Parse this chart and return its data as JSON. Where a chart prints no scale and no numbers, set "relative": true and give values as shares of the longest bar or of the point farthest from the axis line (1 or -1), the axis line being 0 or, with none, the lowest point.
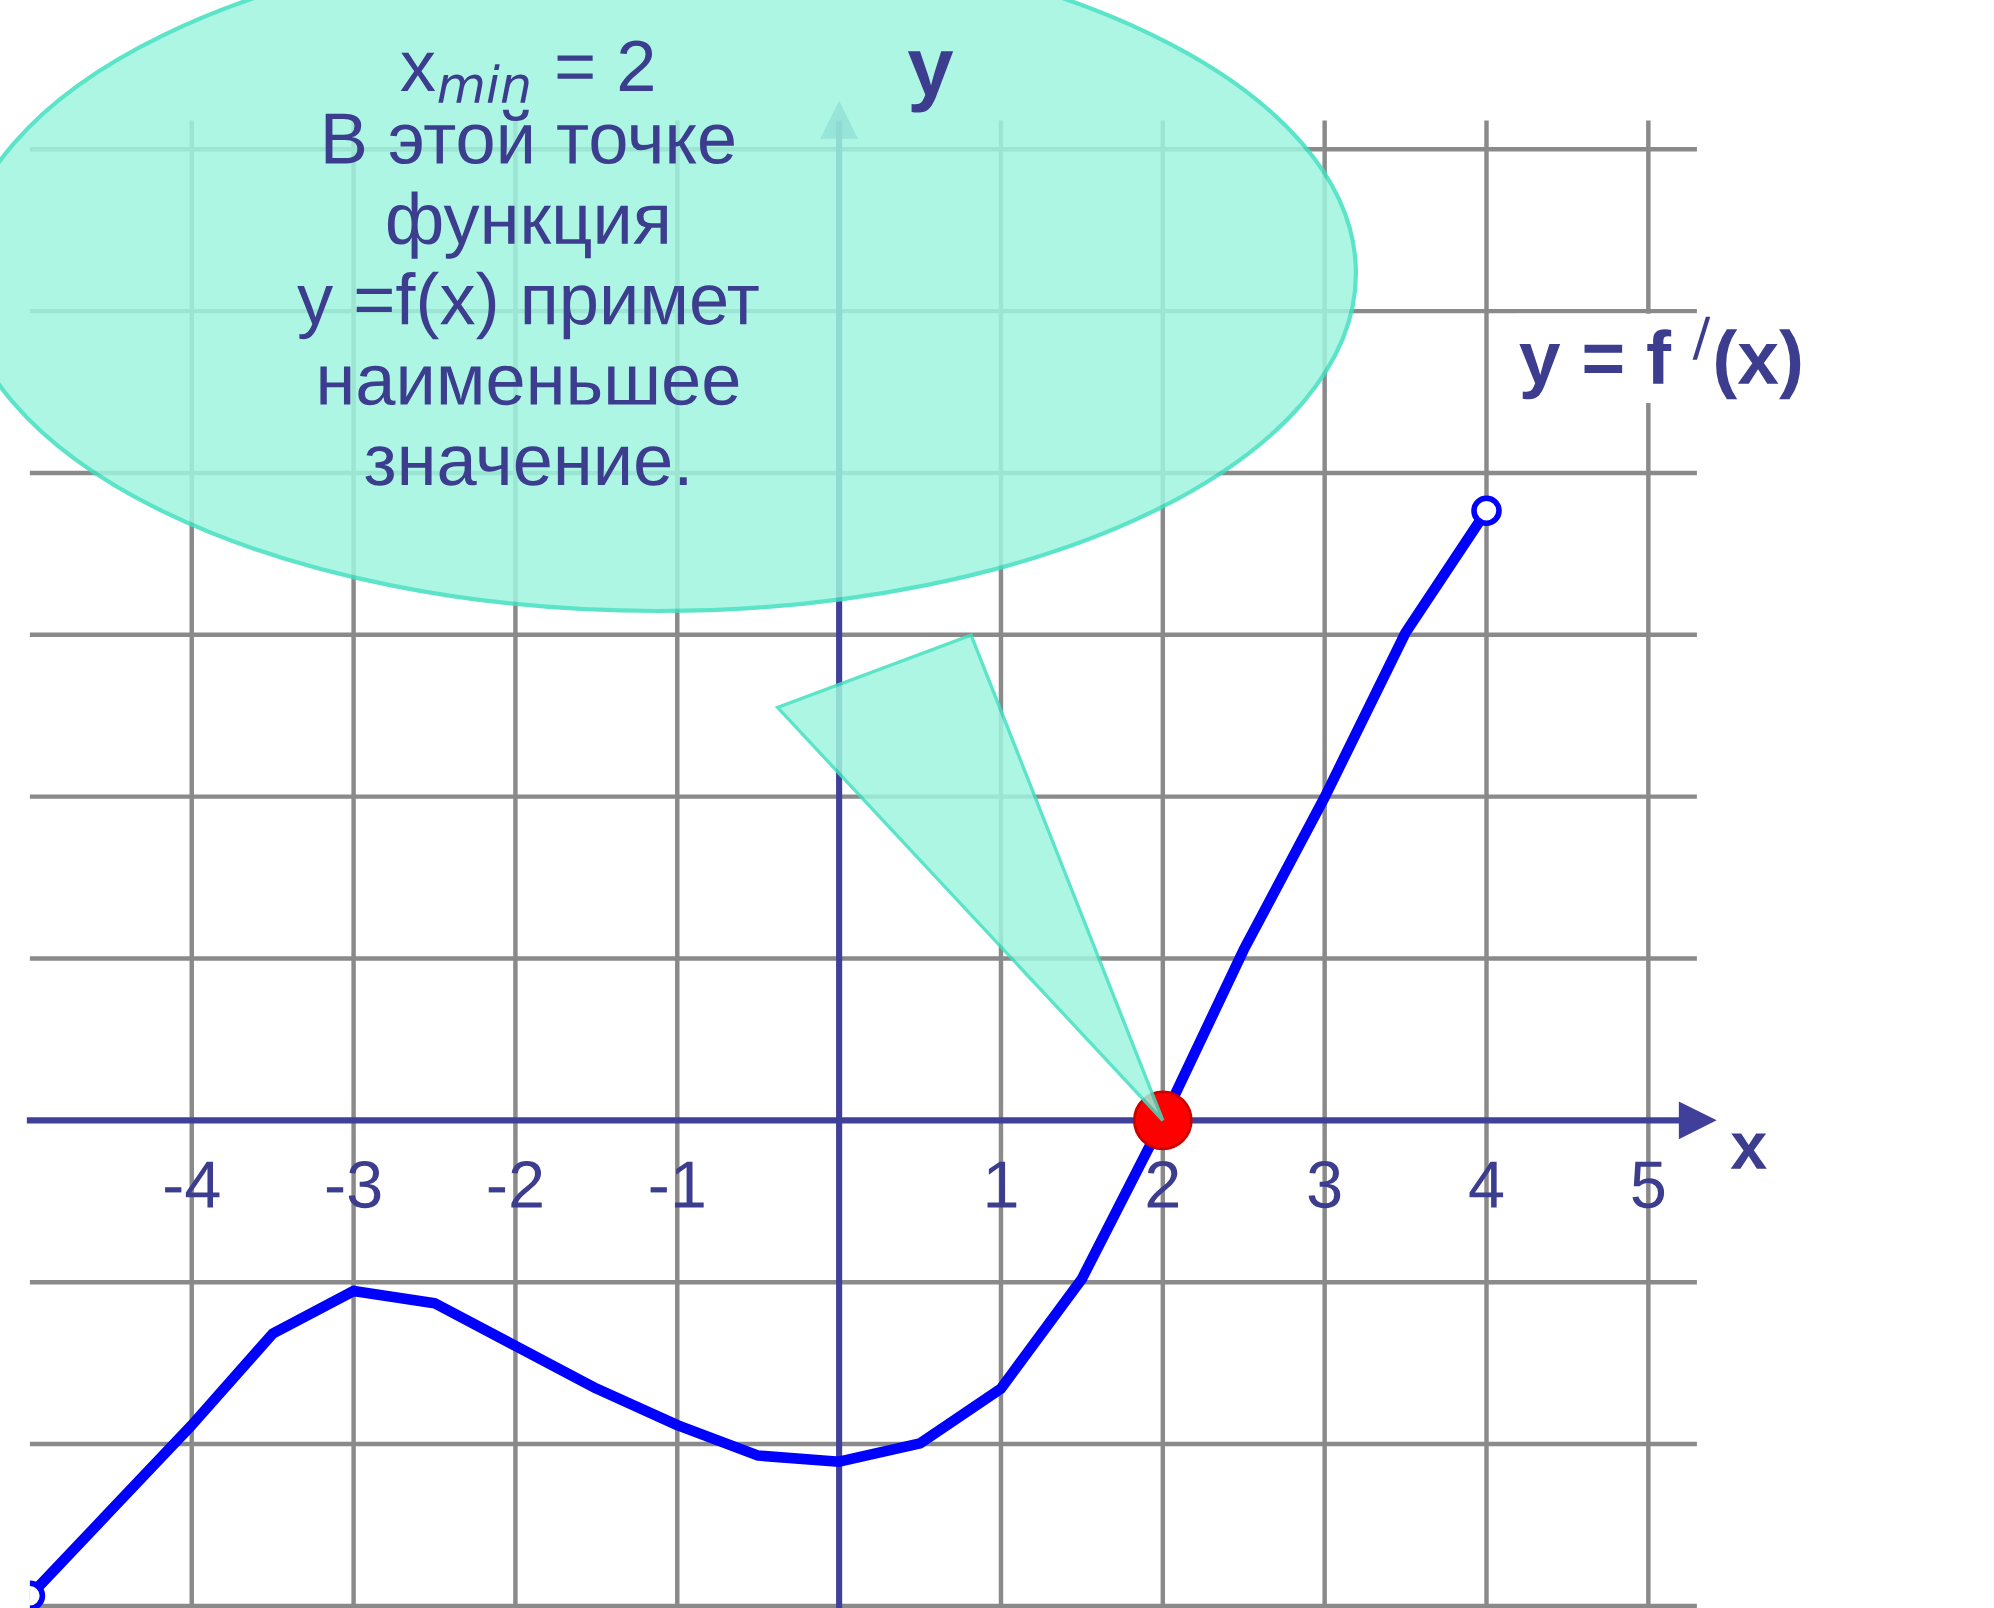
{
  "chart_data": {
    "type": "line",
    "relative": true,
    "xlabel": "x",
    "ylabel": "y",
    "x": [
      -5,
      -4.5,
      -4,
      -3.5,
      -3,
      -2.5,
      -2,
      -1.5,
      -1,
      -0.5,
      0,
      0.5,
      1,
      1.5,
      2,
      2.5,
      3,
      3.5,
      4
    ],
    "xlim": [
      -5,
      5.3
    ],
    "xticks": [
      -4,
      -3,
      -2,
      -1,
      1,
      2,
      3,
      4,
      5
    ],
    "series": [
      {
        "name": "y = f $^{/}$(x)",
        "color": "#0000ff",
        "values": [
          -0.78,
          -0.64,
          -0.5,
          -0.35,
          -0.28,
          -0.3,
          -0.37,
          -0.44,
          -0.5,
          -0.55,
          -0.56,
          -0.53,
          -0.44,
          -0.26,
          0,
          0.28,
          0.53,
          0.8,
          1
        ]
      },
      {
        "type": "scatter",
        "color": "#ff0000",
        "x": [
          2
        ],
        "values": [
          0
        ]
      }
    ],
    "annotations": [
      "x$_{min}$ = 2",
      "В этой точке\nфункция\ny =f(x) примет\nнаименьшее\nзначение."
    ],
    "ref_lines": [
      {
        "axis": "x",
        "value": 0,
        "color": "#40409a"
      }
    ],
    "grid": true,
    "legend": false
  }
}
